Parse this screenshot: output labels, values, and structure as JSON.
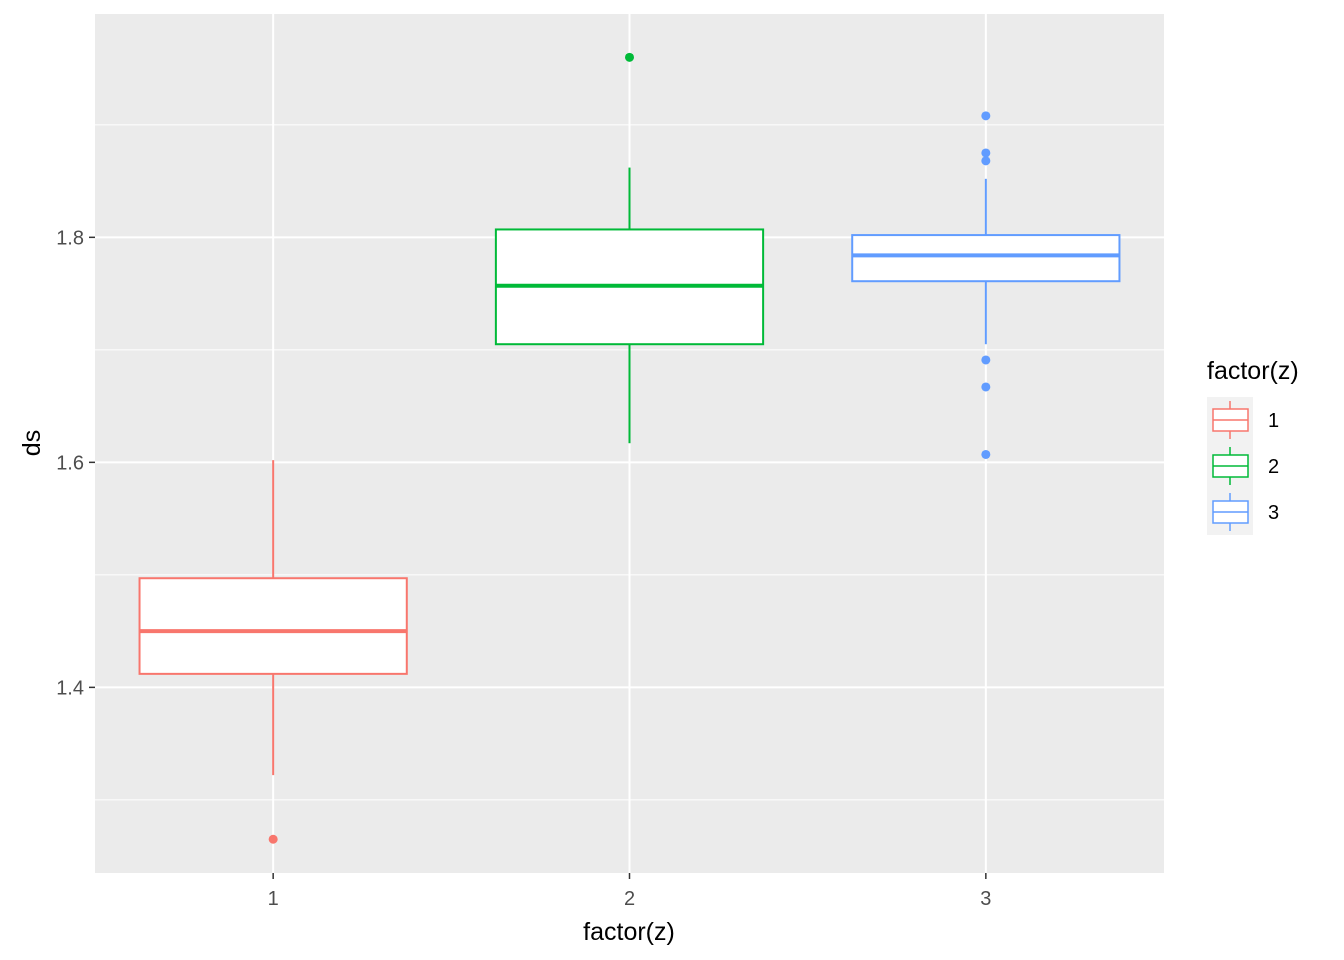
{
  "chart_data": {
    "type": "boxplot",
    "xlabel": "factor(z)",
    "ylabel": "ds",
    "categories": [
      "1",
      "2",
      "3"
    ],
    "ylim": [
      1.235,
      1.9985
    ],
    "y_ticks": [
      "1.4",
      "1.6",
      "1.8"
    ],
    "y_tick_values": [
      1.4,
      1.6,
      1.8
    ],
    "grid": true,
    "legend": {
      "title": "factor(z)",
      "position": "right",
      "labels": [
        "1",
        "2",
        "3"
      ]
    },
    "colors": [
      "#F8766D",
      "#00BA38",
      "#619CFF"
    ],
    "panel_background": "#EBEBEB",
    "boxes": [
      {
        "category": "1",
        "whisker_low": 1.322,
        "q1": 1.412,
        "median": 1.45,
        "q3": 1.497,
        "whisker_high": 1.602,
        "outliers": [
          1.265
        ]
      },
      {
        "category": "2",
        "whisker_low": 1.617,
        "q1": 1.705,
        "median": 1.757,
        "q3": 1.807,
        "whisker_high": 1.862,
        "outliers": [
          1.96
        ]
      },
      {
        "category": "3",
        "whisker_low": 1.705,
        "q1": 1.761,
        "median": 1.784,
        "q3": 1.802,
        "whisker_high": 1.852,
        "outliers": [
          1.607,
          1.667,
          1.691,
          1.868,
          1.875,
          1.908
        ]
      }
    ]
  }
}
